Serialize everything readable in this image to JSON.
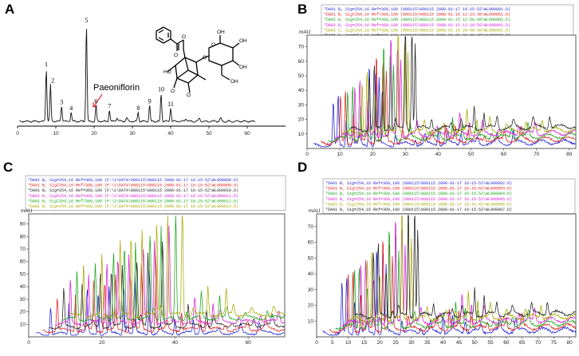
{
  "panels": {
    "A": {
      "label": "A",
      "annotation": "Paeoniflorin",
      "peak_labels": [
        "1",
        "2",
        "3",
        "4",
        "5",
        "6",
        "7",
        "8",
        "9",
        "10",
        "11"
      ],
      "x_ticks": [
        "0",
        "10",
        "20",
        "30",
        "40",
        "50",
        "60"
      ]
    },
    "B": {
      "label": "B",
      "legend": [
        "*DA01 B, Sig=254,16 Ref=360,100 (080115\\080115 2008-01-17 16-15-52\\WL000001.D)",
        "*DA01 B, Sig=254,16 Ref=360,100 (080115\\080115 2008-01-15 12-23-38\\WL000001.D)",
        "*DA01 B, Sig=254,16 Ref=360,100 (080115\\080115 2008-01-15 12-50-09\\WL000001.D)",
        "*DA01 B, Sig=254,16 Ref=360,100 (080115\\080115 2008-01-15 11-10-50\\WL000001.D)",
        "*DA01 C, Sig=254,16 Ref=360,100 (080115\\080115 2008-01-15 20-09-38\\WL000001.D)",
        "*DA01 C, Sig=254,16 Ref=360,100 (080115\\080115 2008-01-15 20-00-38\\WL000002.D)"
      ],
      "ylabel": "mAU",
      "x_ticks": [
        "0",
        "10",
        "20",
        "30",
        "40",
        "50",
        "60",
        "70",
        "80"
      ],
      "y_ticks": [
        "10",
        "20",
        "30",
        "40",
        "50",
        "60",
        "70"
      ]
    },
    "C": {
      "label": "C",
      "legend": [
        "*DA01 B, Sig=254,16 Ref=360,100 (F:\\1\\DATA\\080115\\080115 2008-01-17 16-15-52\\WL000008.D)",
        "*DA01 B, Sig=254,16 Ref=360,100 (F:\\1\\DATA\\080115\\080115 2008-01-17 16-15-52\\WL000009.D)",
        "*DA01 B, Sig=254,16 Ref=360,100 (F:\\1\\DATA\\080115\\080115 2008-01-17 16-15-52\\WL000010.D)",
        "*DA01 B, Sig=254,16 Ref=360,100 (F:\\1\\DATA\\080115\\080115 2008-01-17 16-15-52\\WL000011.D)",
        "*DA01 B, Sig=254,16 Ref=360,100 (F:\\1\\DATA\\080115\\080115 2008-01-17 16-15-52\\WL000012.D)",
        "*DA01 B, Sig=254,16 Ref=360,100 (F:\\1\\DATA\\080115\\080115 2008-01-17 16-15-52\\WL000013.D)"
      ],
      "ylabel": "mAU",
      "x_ticks": [
        "0",
        "20",
        "40",
        "60"
      ],
      "y_ticks": [
        "10",
        "20",
        "30",
        "40",
        "50",
        "60",
        "70",
        "80",
        "90"
      ]
    },
    "D": {
      "label": "D",
      "legend": [
        "*DA01 B, Sig=254,16 Ref=360,100 (080115\\080115 2008-01-17 16-15-52\\WL000002.D)",
        "*DA01 B, Sig=254,16 Ref=360,100 (080115\\080115 2008-01-17 16-15-52\\WL000003.D)",
        "*DA01 B, Sig=254,16 Ref=360,100 (080115\\080115 2008-01-17 16-15-52\\WL000004.D)",
        "*DA01 B, Sig=254,16 Ref=360,100 (080115\\080115 2008-01-17 16-15-52\\WL000005.D)",
        "*DA01 B, Sig=254,16 Ref=360,100 (080115\\080115 2008-01-17 16-15-52\\WL000006.D)",
        "*DA01 B, Sig=254,16 Ref=360,100 (080115\\080115 2008-01-17 16-15-52\\WL000007.D)"
      ],
      "ylabel": "mAU",
      "x_ticks": [
        "0",
        "5",
        "10",
        "15",
        "20",
        "25",
        "30",
        "35",
        "40",
        "45",
        "50",
        "55",
        "60",
        "65",
        "70",
        "75",
        "80"
      ],
      "y_ticks": [
        "10",
        "20",
        "30",
        "40",
        "50",
        "60",
        "70"
      ]
    }
  },
  "colors": [
    "#1f1fd6",
    "#e01b1b",
    "#19a319",
    "#d81bd8",
    "#a8a800",
    "#222222"
  ],
  "chart_data": [
    {
      "type": "line",
      "panel": "A",
      "x_range": [
        0,
        70
      ],
      "peaks": [
        {
          "label": "1",
          "x": 7.5,
          "height": 0.55
        },
        {
          "label": "2",
          "x": 8.6,
          "height": 0.38
        },
        {
          "label": "3",
          "x": 11.5,
          "height": 0.16
        },
        {
          "label": "4",
          "x": 14.0,
          "height": 0.1
        },
        {
          "label": "5",
          "x": 18.0,
          "height": 1.0
        },
        {
          "label": "6",
          "x": 20.5,
          "height": 0.17
        },
        {
          "label": "7",
          "x": 24.0,
          "height": 0.12
        },
        {
          "label": "8",
          "x": 31.5,
          "height": 0.1
        },
        {
          "label": "9",
          "x": 34.5,
          "height": 0.17
        },
        {
          "label": "10",
          "x": 37.5,
          "height": 0.29
        },
        {
          "label": "11",
          "x": 40.0,
          "height": 0.14
        }
      ]
    },
    {
      "type": "line",
      "panel": "B",
      "x_range": [
        0,
        82
      ],
      "y_range": [
        0,
        78
      ],
      "series_count": 6,
      "main_peaks": [
        {
          "x": 8,
          "y": 36
        },
        {
          "x": 9.5,
          "y": 42
        },
        {
          "x": 12,
          "y": 26
        },
        {
          "x": 19,
          "y": 72
        },
        {
          "x": 21,
          "y": 66
        },
        {
          "x": 22,
          "y": 55
        },
        {
          "x": 40,
          "y": 14
        },
        {
          "x": 43,
          "y": 10
        }
      ]
    },
    {
      "type": "line",
      "panel": "C",
      "x_range": [
        0,
        70
      ],
      "y_range": [
        0,
        98
      ],
      "series_count": 6,
      "main_peaks": [
        {
          "x": 6,
          "y": 40
        },
        {
          "x": 11,
          "y": 45
        },
        {
          "x": 16,
          "y": 50
        },
        {
          "x": 19,
          "y": 60
        },
        {
          "x": 22,
          "y": 65
        },
        {
          "x": 26,
          "y": 70
        },
        {
          "x": 29,
          "y": 78
        },
        {
          "x": 33,
          "y": 85
        },
        {
          "x": 40,
          "y": 22
        },
        {
          "x": 45,
          "y": 18
        }
      ]
    },
    {
      "type": "line",
      "panel": "D",
      "x_range": [
        0,
        82
      ],
      "y_range": [
        0,
        78
      ],
      "series_count": 6,
      "main_peaks": [
        {
          "x": 8,
          "y": 40
        },
        {
          "x": 9.5,
          "y": 44
        },
        {
          "x": 12,
          "y": 28
        },
        {
          "x": 19,
          "y": 70
        },
        {
          "x": 21,
          "y": 66
        },
        {
          "x": 22,
          "y": 52
        },
        {
          "x": 40,
          "y": 16
        },
        {
          "x": 43,
          "y": 12
        }
      ]
    }
  ]
}
